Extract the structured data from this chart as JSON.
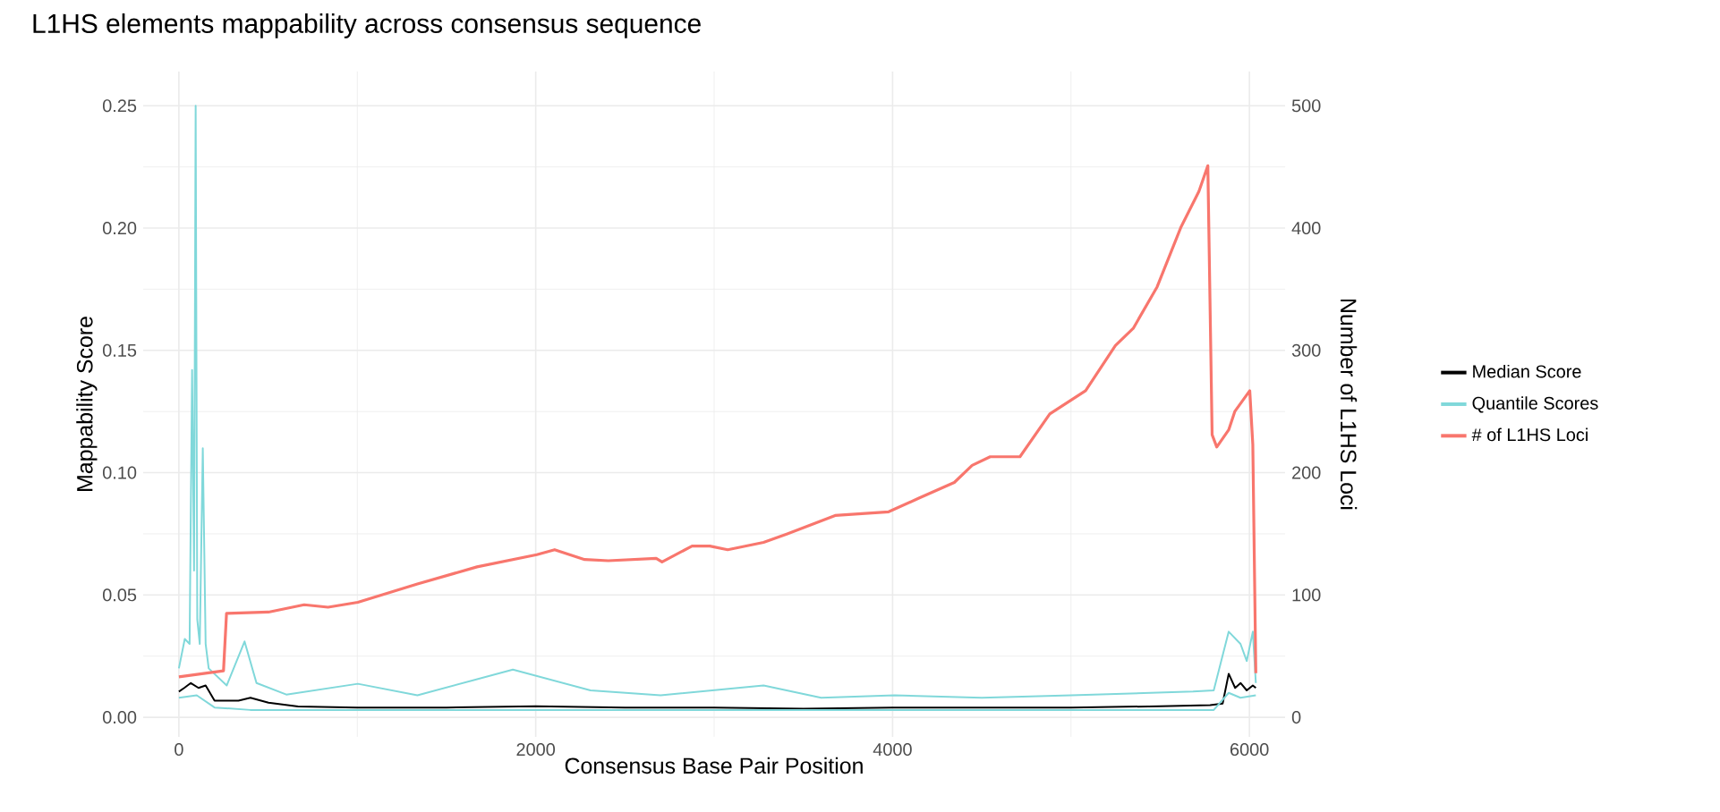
{
  "chart_data": {
    "type": "line",
    "title": "L1HS elements mappability across consensus sequence",
    "xlabel": "Consensus Base Pair Position",
    "ylabel": "Mappability Score",
    "y2label": "Number of L1HS Loci",
    "xlim": [
      -200,
      6200
    ],
    "xticks": [
      0,
      2000,
      4000,
      6000
    ],
    "ylim": [
      -0.008,
      0.264
    ],
    "yticks": [
      {
        "value": 0,
        "label": "0.00"
      },
      0.05,
      {
        "value": 0.1,
        "label": "0.10"
      },
      0.15,
      {
        "value": 0.2,
        "label": "0.20"
      },
      0.25
    ],
    "y2lim": [
      -16,
      528
    ],
    "y2ticks": [
      0,
      100,
      200,
      300,
      400,
      500
    ],
    "grid": true,
    "legend": "right",
    "series": [
      {
        "name": "Median Score",
        "color": "#000000",
        "x": [
          0,
          30,
          67,
          110,
          150,
          200,
          334,
          401,
          502,
          668,
          1000,
          1500,
          2000,
          2500,
          3000,
          3500,
          4000,
          4500,
          5000,
          5500,
          5780,
          5850,
          5884,
          5920,
          5951,
          5985,
          6019,
          6036
        ],
        "values": [
          0.0105,
          0.012,
          0.014,
          0.012,
          0.013,
          0.0068,
          0.0068,
          0.008,
          0.006,
          0.0044,
          0.004,
          0.004,
          0.0045,
          0.004,
          0.004,
          0.0035,
          0.004,
          0.004,
          0.004,
          0.0045,
          0.005,
          0.0056,
          0.0178,
          0.012,
          0.014,
          0.011,
          0.013,
          0.012
        ]
      },
      {
        "name": "Quantile Scores",
        "color": "#80d8da",
        "x": [
          0,
          33,
          60,
          74,
          85,
          94,
          103,
          117,
          134,
          150,
          167,
          268,
          368,
          435,
          602,
          1003,
          1337,
          1872,
          2307,
          2700,
          3277,
          3600,
          4011,
          4500,
          5000,
          5684,
          5800,
          5884,
          5950,
          5985,
          6019,
          6036
        ],
        "values": [
          0.02,
          0.032,
          0.03,
          0.142,
          0.06,
          0.25,
          0.04,
          0.03,
          0.11,
          0.03,
          0.02,
          0.013,
          0.031,
          0.014,
          0.0093,
          0.0137,
          0.009,
          0.0195,
          0.011,
          0.009,
          0.013,
          0.008,
          0.009,
          0.008,
          0.009,
          0.0105,
          0.011,
          0.035,
          0.03,
          0.023,
          0.035,
          0.014
        ]
      },
      {
        "color": "#80d8da",
        "x": [
          0,
          100,
          200,
          400,
          1000,
          2000,
          3000,
          4000,
          5000,
          5800,
          5884,
          5950,
          6036
        ],
        "values": [
          0.008,
          0.009,
          0.004,
          0.003,
          0.003,
          0.003,
          0.003,
          0.003,
          0.003,
          0.003,
          0.01,
          0.008,
          0.009
        ]
      },
      {
        "name": "# of L1HS Loci",
        "color": "#f8766d",
        "axis": "y2",
        "x": [
          0,
          250,
          267,
          502,
          702,
          836,
          1003,
          1337,
          1671,
          2006,
          2106,
          2274,
          2407,
          2675,
          2708,
          2876,
          2976,
          3076,
          3277,
          3410,
          3678,
          3978,
          4145,
          4346,
          4446,
          4547,
          4714,
          4881,
          5082,
          5249,
          5349,
          5483,
          5617,
          5717,
          5767,
          5791,
          5817,
          5884,
          5918,
          6002,
          6019,
          6036
        ],
        "values": [
          33,
          38,
          85,
          86,
          92,
          90,
          94,
          109,
          123,
          133,
          137,
          129,
          128,
          130,
          127,
          140,
          140,
          137,
          143,
          150,
          165,
          168,
          179,
          192,
          206,
          213,
          213,
          248,
          267,
          304,
          318,
          352,
          401,
          430,
          451,
          231,
          221,
          235,
          250,
          267,
          223,
          36
        ]
      }
    ]
  }
}
